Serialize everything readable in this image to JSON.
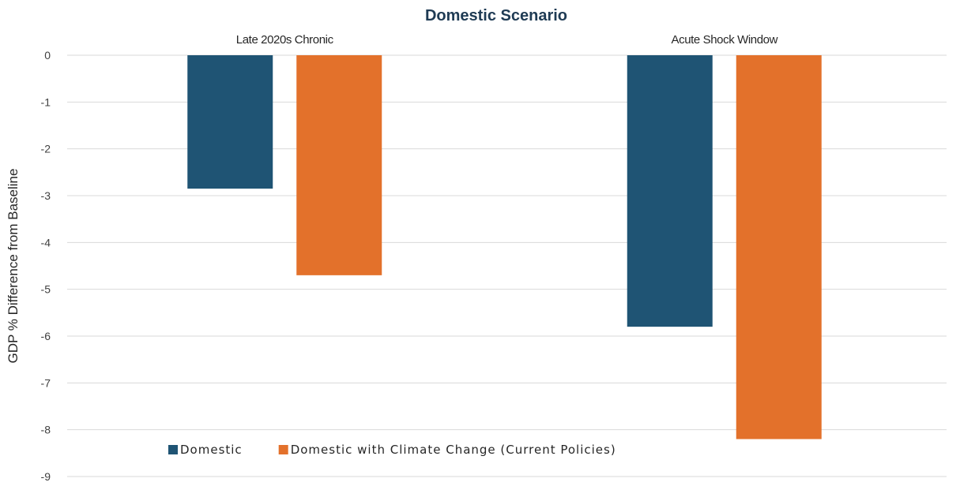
{
  "chart_data": {
    "type": "bar",
    "title": "Domestic Scenario",
    "ylabel": "GDP % Difference from Baseline",
    "categories": [
      "Late 2020s Chronic",
      "Acute Shock Window"
    ],
    "series": [
      {
        "name": "Domestic",
        "color": "#1f5474",
        "values": [
          -2.85,
          -5.8
        ]
      },
      {
        "name": "Domestic with Climate Change (Current Policies)",
        "color": "#e3712b",
        "values": [
          -4.7,
          -8.2
        ]
      }
    ],
    "yticks": [
      "0",
      "-1",
      "-2",
      "-3",
      "-4",
      "-5",
      "-6",
      "-7",
      "-8",
      "-9"
    ],
    "ylim": [
      -9,
      0
    ],
    "grid": true,
    "legend_position": "bottom-left"
  }
}
